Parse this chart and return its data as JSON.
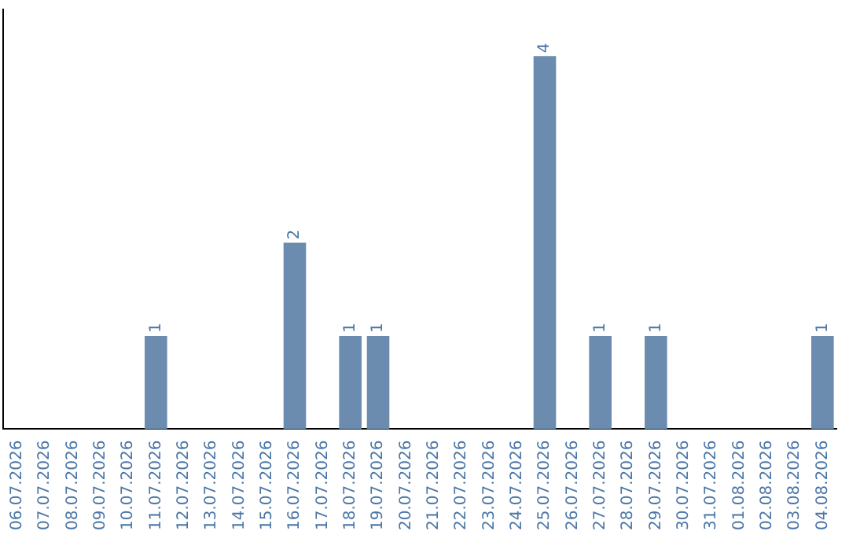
{
  "chart_data": {
    "type": "bar",
    "categories": [
      "06.07.2026",
      "07.07.2026",
      "08.07.2026",
      "09.07.2026",
      "10.07.2026",
      "11.07.2026",
      "12.07.2026",
      "13.07.2026",
      "14.07.2026",
      "15.07.2026",
      "16.07.2026",
      "17.07.2026",
      "18.07.2026",
      "19.07.2026",
      "20.07.2026",
      "21.07.2026",
      "22.07.2026",
      "23.07.2026",
      "24.07.2026",
      "25.07.2026",
      "26.07.2026",
      "27.07.2026",
      "28.07.2026",
      "29.07.2026",
      "30.07.2026",
      "31.07.2026",
      "01.08.2026",
      "02.08.2026",
      "03.08.2026",
      "04.08.2026"
    ],
    "values": [
      0,
      0,
      0,
      0,
      0,
      1,
      0,
      0,
      0,
      0,
      2,
      0,
      1,
      1,
      0,
      0,
      0,
      0,
      0,
      4,
      0,
      1,
      0,
      1,
      0,
      0,
      0,
      0,
      0,
      1
    ],
    "value_labels": [
      null,
      null,
      null,
      null,
      null,
      "1",
      null,
      null,
      null,
      null,
      "2",
      null,
      "1",
      "1",
      null,
      null,
      null,
      null,
      null,
      "4",
      null,
      "1",
      null,
      "1",
      null,
      null,
      null,
      null,
      null,
      "1"
    ],
    "color": "#6b8cae",
    "grid": false,
    "legend": false
  }
}
